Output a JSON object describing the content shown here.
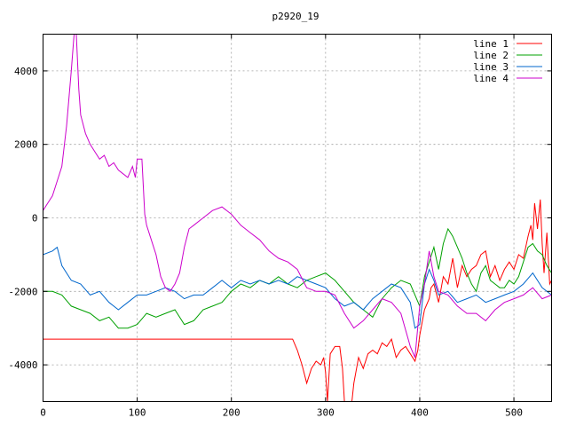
{
  "chart_data": {
    "type": "line",
    "title": "p2920_19",
    "xlabel": "",
    "ylabel": "",
    "xlim": [
      0,
      540
    ],
    "ylim": [
      -5000,
      5000
    ],
    "grid": true,
    "legend_position": "top-right",
    "xticks": [
      0,
      100,
      200,
      300,
      400,
      500
    ],
    "yticks": [
      -4000,
      -2000,
      0,
      2000,
      4000
    ],
    "series": [
      {
        "name": "line 1",
        "color": "#ff0000",
        "x": [
          0,
          50,
          100,
          150,
          200,
          250,
          265,
          270,
          275,
          280,
          285,
          290,
          295,
          298,
          300,
          302,
          305,
          310,
          315,
          318,
          320,
          325,
          328,
          330,
          335,
          340,
          345,
          350,
          355,
          360,
          365,
          370,
          375,
          380,
          385,
          390,
          395,
          398,
          400,
          405,
          410,
          412,
          415,
          420,
          425,
          430,
          435,
          440,
          445,
          450,
          455,
          460,
          465,
          470,
          475,
          480,
          485,
          490,
          495,
          500,
          505,
          510,
          515,
          518,
          520,
          522,
          525,
          528,
          530,
          532,
          535,
          538,
          540
        ],
        "y": [
          -3300,
          -3300,
          -3300,
          -3300,
          -3300,
          -3300,
          -3300,
          -3600,
          -4000,
          -4500,
          -4100,
          -3900,
          -4000,
          -3800,
          -4200,
          -5000,
          -3700,
          -3500,
          -3500,
          -4100,
          -5000,
          -5000,
          -5000,
          -4500,
          -3800,
          -4100,
          -3700,
          -3600,
          -3700,
          -3400,
          -3500,
          -3300,
          -3800,
          -3600,
          -3500,
          -3700,
          -3900,
          -3600,
          -3200,
          -2500,
          -2200,
          -1900,
          -1800,
          -2300,
          -1600,
          -1800,
          -1100,
          -1900,
          -1300,
          -1600,
          -1400,
          -1300,
          -1000,
          -900,
          -1600,
          -1300,
          -1700,
          -1400,
          -1200,
          -1400,
          -1000,
          -1100,
          -500,
          -200,
          -600,
          400,
          -300,
          500,
          -700,
          -1500,
          -400,
          -1800,
          -1700
        ]
      },
      {
        "name": "line 2",
        "color": "#00a000",
        "x": [
          0,
          10,
          20,
          30,
          40,
          50,
          60,
          70,
          80,
          90,
          100,
          110,
          120,
          130,
          140,
          150,
          160,
          170,
          180,
          190,
          200,
          210,
          220,
          230,
          240,
          250,
          260,
          270,
          280,
          290,
          300,
          310,
          320,
          330,
          340,
          350,
          360,
          370,
          380,
          390,
          395,
          400,
          405,
          410,
          415,
          420,
          425,
          430,
          435,
          440,
          445,
          450,
          455,
          460,
          465,
          470,
          475,
          480,
          485,
          490,
          495,
          500,
          505,
          510,
          515,
          520,
          525,
          530,
          535,
          540
        ],
        "y": [
          -2000,
          -2000,
          -2100,
          -2400,
          -2500,
          -2600,
          -2800,
          -2700,
          -3000,
          -3000,
          -2900,
          -2600,
          -2700,
          -2600,
          -2500,
          -2900,
          -2800,
          -2500,
          -2400,
          -2300,
          -2000,
          -1800,
          -1900,
          -1700,
          -1800,
          -1600,
          -1800,
          -1900,
          -1700,
          -1600,
          -1500,
          -1700,
          -2000,
          -2300,
          -2500,
          -2700,
          -2200,
          -1900,
          -1700,
          -1800,
          -2100,
          -2400,
          -1600,
          -1200,
          -800,
          -1400,
          -700,
          -300,
          -500,
          -800,
          -1100,
          -1500,
          -1800,
          -2000,
          -1500,
          -1300,
          -1700,
          -1800,
          -1900,
          -1900,
          -1700,
          -1800,
          -1600,
          -1200,
          -800,
          -700,
          -900,
          -1000,
          -1300,
          -1500
        ]
      },
      {
        "name": "line 3",
        "color": "#0066cc",
        "x": [
          0,
          10,
          15,
          20,
          30,
          40,
          50,
          60,
          70,
          80,
          90,
          100,
          110,
          120,
          130,
          140,
          150,
          160,
          170,
          180,
          190,
          200,
          210,
          220,
          230,
          240,
          250,
          260,
          270,
          280,
          290,
          300,
          310,
          320,
          330,
          340,
          350,
          360,
          370,
          380,
          390,
          395,
          400,
          405,
          410,
          415,
          420,
          430,
          440,
          450,
          460,
          470,
          480,
          490,
          500,
          510,
          520,
          530,
          540
        ],
        "y": [
          -1000,
          -900,
          -800,
          -1300,
          -1700,
          -1800,
          -2100,
          -2000,
          -2300,
          -2500,
          -2300,
          -2100,
          -2100,
          -2000,
          -1900,
          -2000,
          -2200,
          -2100,
          -2100,
          -1900,
          -1700,
          -1900,
          -1700,
          -1800,
          -1700,
          -1800,
          -1700,
          -1800,
          -1600,
          -1700,
          -1800,
          -1900,
          -2200,
          -2400,
          -2300,
          -2500,
          -2200,
          -2000,
          -1800,
          -1900,
          -2300,
          -3000,
          -2900,
          -1800,
          -1400,
          -1700,
          -2100,
          -2000,
          -2300,
          -2200,
          -2100,
          -2300,
          -2200,
          -2100,
          -2000,
          -1800,
          -1500,
          -1900,
          -2100
        ]
      },
      {
        "name": "line 4",
        "color": "#cc00cc",
        "x": [
          0,
          5,
          10,
          15,
          20,
          25,
          30,
          33,
          35,
          38,
          40,
          45,
          50,
          55,
          60,
          65,
          70,
          75,
          80,
          85,
          90,
          95,
          98,
          100,
          105,
          108,
          110,
          115,
          120,
          125,
          130,
          135,
          140,
          145,
          150,
          155,
          160,
          170,
          180,
          190,
          200,
          210,
          220,
          230,
          240,
          250,
          260,
          270,
          280,
          290,
          300,
          310,
          320,
          330,
          340,
          350,
          360,
          370,
          380,
          390,
          395,
          400,
          405,
          410,
          415,
          420,
          430,
          440,
          450,
          460,
          470,
          480,
          490,
          500,
          510,
          520,
          530,
          540
        ],
        "y": [
          200,
          400,
          600,
          1000,
          1400,
          2500,
          4000,
          5000,
          5200,
          3500,
          2800,
          2300,
          2000,
          1800,
          1600,
          1700,
          1400,
          1500,
          1300,
          1200,
          1100,
          1400,
          1100,
          1600,
          1600,
          100,
          -200,
          -600,
          -1000,
          -1600,
          -1900,
          -2000,
          -1800,
          -1500,
          -800,
          -300,
          -200,
          0,
          200,
          300,
          100,
          -200,
          -400,
          -600,
          -900,
          -1100,
          -1200,
          -1400,
          -1900,
          -2000,
          -2000,
          -2100,
          -2600,
          -3000,
          -2800,
          -2500,
          -2200,
          -2300,
          -2600,
          -3500,
          -3800,
          -2400,
          -1800,
          -900,
          -1600,
          -2000,
          -2100,
          -2400,
          -2600,
          -2600,
          -2800,
          -2500,
          -2300,
          -2200,
          -2100,
          -1900,
          -2200,
          -2100
        ]
      }
    ]
  }
}
